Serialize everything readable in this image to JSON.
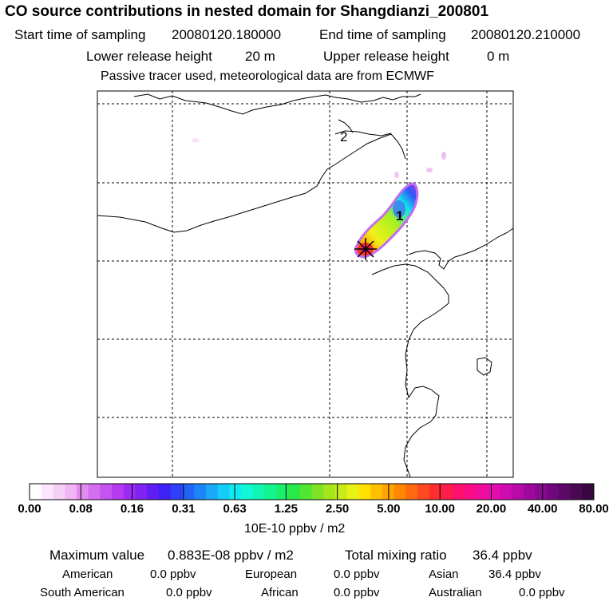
{
  "title": "CO  source contributions in nested domain for Shangdianzi_200801",
  "sampling": {
    "start_label": "Start time of sampling",
    "start_value": "20080120.180000",
    "end_label": "End time of sampling",
    "end_value": "20080120.210000"
  },
  "release": {
    "lower_label": "Lower release height",
    "lower_value": "20 m",
    "upper_label": "Upper release height",
    "upper_value": "0 m"
  },
  "tracer_note": "Passive tracer used, meteorological data are from ECMWF",
  "map": {
    "labels": [
      "2",
      "1"
    ],
    "station_marker": "star-marker"
  },
  "colorbar": {
    "ticks": [
      "0.00",
      "0.08",
      "0.16",
      "0.31",
      "0.63",
      "1.25",
      "2.50",
      "5.00",
      "10.00",
      "20.00",
      "40.00",
      "80.00"
    ],
    "unit": "10E-10 ppbv / m2",
    "colors": [
      "#ffffff",
      "#fbe6fb",
      "#f6cff6",
      "#f0b5f3",
      "#e08cf0",
      "#d36ef0",
      "#c652f0",
      "#b53af0",
      "#9b2bf0",
      "#7f22f2",
      "#5e1ef5",
      "#3c22f6",
      "#2e40f8",
      "#2263f8",
      "#1a86f8",
      "#1ba8f8",
      "#14ccf8",
      "#0eeaf0",
      "#10f8d6",
      "#12f6b3",
      "#14f48d",
      "#18f06a",
      "#2ae848",
      "#4ee632",
      "#7ee424",
      "#a6e61c",
      "#c8ec18",
      "#e8f214",
      "#ffe000",
      "#ffc000",
      "#ffa400",
      "#ff8800",
      "#ff6a10",
      "#ff4a20",
      "#ff2e2e",
      "#ff1e4a",
      "#ff106e",
      "#fa0c88",
      "#f00c9e",
      "#e40cae",
      "#cf0ab0",
      "#b80aa8",
      "#a0089c",
      "#880890",
      "#70087c",
      "#5c0866",
      "#4a0852",
      "#3a0642"
    ]
  },
  "summary": {
    "max_label": "Maximum value",
    "max_value": "0.883E-08 ppbv / m2",
    "total_label": "Total mixing ratio",
    "total_value": "36.4 ppbv",
    "regions": [
      {
        "name": "American",
        "value": "0.0 ppbv"
      },
      {
        "name": "European",
        "value": "0.0 ppbv"
      },
      {
        "name": "Asian",
        "value": "36.4 ppbv"
      },
      {
        "name": "South American",
        "value": "0.0 ppbv"
      },
      {
        "name": "African",
        "value": "0.0 ppbv"
      },
      {
        "name": "Australian",
        "value": "0.0 ppbv"
      }
    ]
  }
}
